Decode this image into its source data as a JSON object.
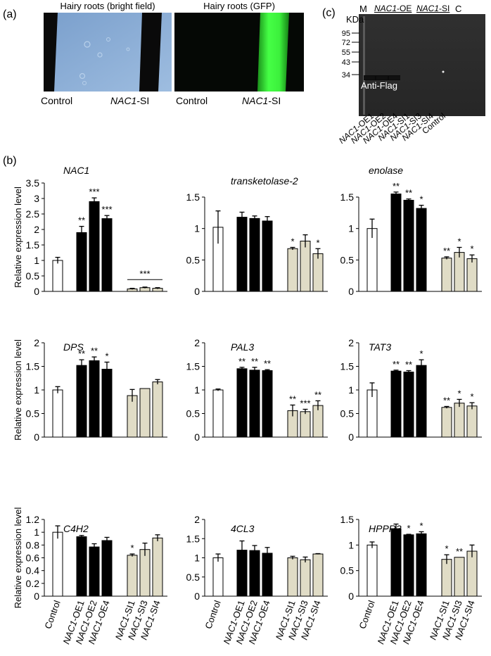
{
  "panels": {
    "a": {
      "label": "(a)"
    },
    "b": {
      "label": "(b)"
    },
    "c": {
      "label": "(c)"
    }
  },
  "panel_a": {
    "bright_title": "Hairy roots (bright field)",
    "gfp_title": "Hairy roots (GFP)",
    "control_label": "Control",
    "si_label": "NAC1-SI",
    "si_italic": "NAC1",
    "si_suffix": "-SI",
    "colors": {
      "bright_bg": "#8aaed6",
      "root_dark": "#0a0a0a",
      "gfp_bg": "#050805",
      "gfp_green": "#3cff3c"
    }
  },
  "panel_c": {
    "kda_label": "KDa",
    "lane_m": "M",
    "group_oe": "NAC1-OE",
    "group_si": "NAC1-SI",
    "lane_c": "C",
    "group_oe_italic": "NAC1",
    "group_oe_suffix": "-OE",
    "group_si_italic": "NAC1",
    "group_si_suffix": "-SI",
    "markers": [
      "95",
      "72",
      "55",
      "43",
      "34"
    ],
    "antibody_label": "Anti-Flag",
    "lanes": [
      "NAC1-OE1",
      "NAC1-OE2",
      "NAC1-OE4",
      "NAC1-SI1",
      "NAC1-SI3",
      "NAC1-SI4",
      "Control"
    ]
  },
  "chart_data": [
    {
      "type": "bar",
      "title": "NAC1",
      "ylabel": "Relative expression level",
      "ylim": [
        0,
        3.5
      ],
      "yticks": [
        "0",
        "0.5",
        "1",
        "1.5",
        "2",
        "2.5",
        "3",
        "3.5"
      ],
      "categories": [
        "Control",
        "NAC1-OE1",
        "NAC1-OE2",
        "NAC1-OE4",
        "NAC1-SI1",
        "NAC1-SI3",
        "NAC1-SI4"
      ],
      "values": [
        1.0,
        1.9,
        2.9,
        2.35,
        0.08,
        0.12,
        0.1
      ],
      "errors": [
        0.1,
        0.2,
        0.12,
        0.1,
        0.02,
        0.02,
        0.02
      ],
      "sig": [
        "",
        "**",
        "***",
        "***",
        "",
        "",
        ""
      ],
      "bracket": "***"
    },
    {
      "type": "bar",
      "title": "transketolase-2",
      "ylabel": "",
      "ylim": [
        0,
        1.5
      ],
      "yticks": [
        "0",
        "0.5",
        "1",
        "1.5"
      ],
      "categories": [
        "Control",
        "NAC1-OE1",
        "NAC1-OE2",
        "NAC1-OE4",
        "NAC1-SI1",
        "NAC1-SI3",
        "NAC1-SI4"
      ],
      "values": [
        1.02,
        1.18,
        1.16,
        1.12,
        0.68,
        0.8,
        0.6
      ],
      "errors": [
        0.26,
        0.08,
        0.04,
        0.07,
        0.02,
        0.1,
        0.08
      ],
      "sig": [
        "",
        "",
        "",
        "",
        "*",
        "",
        "*"
      ]
    },
    {
      "type": "bar",
      "title": "enolase",
      "ylabel": "",
      "ylim": [
        0,
        1.5
      ],
      "yticks": [
        "0",
        "0.5",
        "1",
        "1.5"
      ],
      "categories": [
        "Control",
        "NAC1-OE1",
        "NAC1-OE2",
        "NAC1-OE4",
        "NAC1-SI1",
        "NAC1-SI3",
        "NAC1-SI4"
      ],
      "values": [
        1.0,
        1.55,
        1.45,
        1.32,
        0.53,
        0.62,
        0.52
      ],
      "errors": [
        0.15,
        0.03,
        0.02,
        0.05,
        0.02,
        0.08,
        0.06
      ],
      "sig": [
        "",
        "**",
        "**",
        "*",
        "**",
        "*",
        "*"
      ]
    },
    {
      "type": "bar",
      "title": "DPS",
      "ylabel": "Relative expression level",
      "ylim": [
        0,
        2
      ],
      "yticks": [
        "0",
        "0.5",
        "1",
        "1.5",
        "2"
      ],
      "categories": [
        "Control",
        "NAC1-OE1",
        "NAC1-OE2",
        "NAC1-OE4",
        "NAC1-SI1",
        "NAC1-SI3",
        "NAC1-SI4"
      ],
      "values": [
        1.0,
        1.52,
        1.62,
        1.44,
        0.88,
        1.03,
        1.17
      ],
      "errors": [
        0.07,
        0.12,
        0.08,
        0.15,
        0.13,
        0.0,
        0.05
      ],
      "sig": [
        "",
        "**",
        "**",
        "*",
        "",
        "",
        ""
      ]
    },
    {
      "type": "bar",
      "title": "PAL3",
      "ylabel": "",
      "ylim": [
        0,
        2
      ],
      "yticks": [
        "0",
        "0.5",
        "1",
        "1.5",
        "2"
      ],
      "categories": [
        "Control",
        "NAC1-OE1",
        "NAC1-OE2",
        "NAC1-OE4",
        "NAC1-SI1",
        "NAC1-SI3",
        "NAC1-SI4"
      ],
      "values": [
        1.0,
        1.45,
        1.42,
        1.41,
        0.56,
        0.54,
        0.67
      ],
      "errors": [
        0.02,
        0.03,
        0.06,
        0.02,
        0.12,
        0.05,
        0.1
      ],
      "sig": [
        "",
        "**",
        "**",
        "**",
        "**",
        "***",
        "**"
      ]
    },
    {
      "type": "bar",
      "title": "TAT3",
      "ylabel": "",
      "ylim": [
        0,
        2
      ],
      "yticks": [
        "0",
        "0.5",
        "1",
        "1.5",
        "2"
      ],
      "categories": [
        "Control",
        "NAC1-OE1",
        "NAC1-OE2",
        "NAC1-OE4",
        "NAC1-SI1",
        "NAC1-SI3",
        "NAC1-SI4"
      ],
      "values": [
        1.0,
        1.4,
        1.38,
        1.52,
        0.63,
        0.72,
        0.66
      ],
      "errors": [
        0.15,
        0.02,
        0.03,
        0.12,
        0.02,
        0.08,
        0.07
      ],
      "sig": [
        "",
        "**",
        "**",
        "*",
        "**",
        "*",
        "*"
      ]
    },
    {
      "type": "bar",
      "title": "C4H2",
      "ylabel": "Relative expression level",
      "ylim": [
        0,
        1.2
      ],
      "yticks": [
        "0",
        "0.2",
        "0.4",
        "0.6",
        "0.8",
        "1",
        "1.2"
      ],
      "categories": [
        "Control",
        "NAC1-OE1",
        "NAC1-OE2",
        "NAC1-OE4",
        "NAC1-SI1",
        "NAC1-SI3",
        "NAC1-SI4"
      ],
      "values": [
        1.0,
        0.93,
        0.77,
        0.87,
        0.64,
        0.73,
        0.91
      ],
      "errors": [
        0.1,
        0.02,
        0.05,
        0.05,
        0.02,
        0.1,
        0.05
      ],
      "sig": [
        "",
        "",
        "",
        "",
        "*",
        "",
        ""
      ]
    },
    {
      "type": "bar",
      "title": "4CL3",
      "ylabel": "",
      "ylim": [
        0,
        2
      ],
      "yticks": [
        "0",
        "0.5",
        "1",
        "1.5",
        "2"
      ],
      "categories": [
        "Control",
        "NAC1-OE1",
        "NAC1-OE2",
        "NAC1-OE4",
        "NAC1-SI1",
        "NAC1-SI3",
        "NAC1-SI4"
      ],
      "values": [
        1.0,
        1.2,
        1.19,
        1.12,
        1.0,
        0.95,
        1.1
      ],
      "errors": [
        0.1,
        0.24,
        0.13,
        0.15,
        0.04,
        0.07,
        0.01
      ],
      "sig": [
        "",
        "",
        "",
        "",
        "",
        "",
        ""
      ]
    },
    {
      "type": "bar",
      "title": "HPPR3",
      "ylabel": "",
      "ylim": [
        0,
        1.5
      ],
      "yticks": [
        "0",
        "0.5",
        "1",
        "1.5"
      ],
      "categories": [
        "Control",
        "NAC1-OE1",
        "NAC1-OE2",
        "NAC1-OE4",
        "NAC1-SI1",
        "NAC1-SI3",
        "NAC1-SI4"
      ],
      "values": [
        1.0,
        1.32,
        1.2,
        1.22,
        0.72,
        0.76,
        0.88
      ],
      "errors": [
        0.06,
        0.09,
        0.01,
        0.04,
        0.09,
        0.0,
        0.12
      ],
      "sig": [
        "",
        "",
        "*",
        "*",
        "*",
        "**",
        ""
      ]
    }
  ],
  "bar_colors": {
    "control": "#ffffff",
    "oe": "#000000",
    "si": "#e0dcc6"
  }
}
